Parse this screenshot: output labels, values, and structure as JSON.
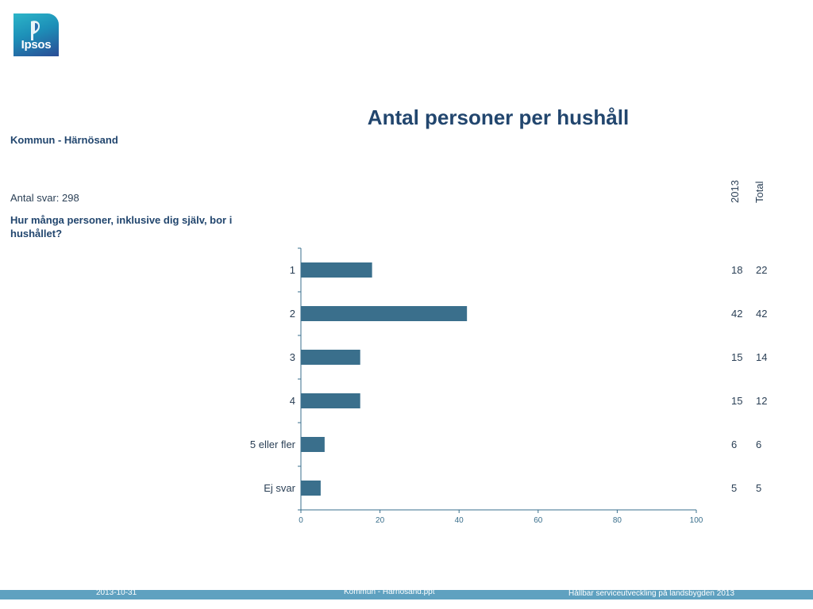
{
  "logo": {
    "text": "Ipsos"
  },
  "title": "Antal personer per hushåll",
  "subtitle": "Kommun - Härnösand",
  "answers_label": "Antal svar: 298",
  "question": "Hur många personer, inklusive dig själv, bor i hushållet?",
  "columns": [
    "2013",
    "Total"
  ],
  "colors": {
    "bar": "#3a6f8c",
    "axis": "#3a6f8c",
    "text": "#2a3f55",
    "heading": "#22466e",
    "footer": "#5fa1c0"
  },
  "chart_data": {
    "type": "bar",
    "orientation": "horizontal",
    "categories": [
      "1",
      "2",
      "3",
      "4",
      "5 eller fler",
      "Ej svar"
    ],
    "series": [
      {
        "name": "2013",
        "values": [
          18,
          42,
          15,
          15,
          6,
          5
        ]
      },
      {
        "name": "Total",
        "values": [
          22,
          42,
          14,
          12,
          6,
          5
        ]
      }
    ],
    "plotted_series": "2013",
    "xlim": [
      0,
      100
    ],
    "xticks": [
      "0",
      "20",
      "40",
      "60",
      "80",
      "100"
    ],
    "grid": false
  },
  "footer": {
    "date": "2013-10-31",
    "file": "Kommun - Härnösand.ppt",
    "project": "Hållbar serviceutveckling på landsbygden 2013"
  }
}
